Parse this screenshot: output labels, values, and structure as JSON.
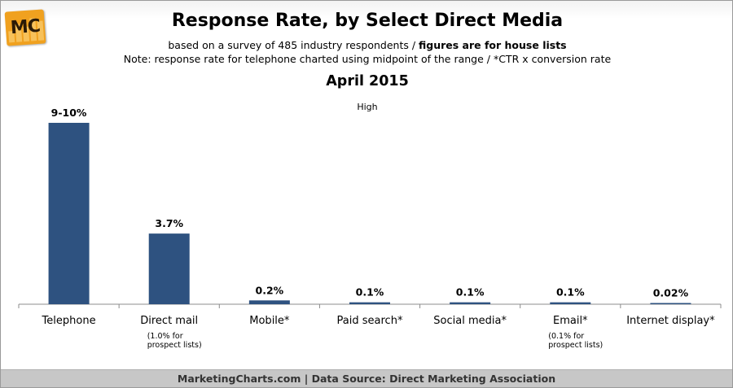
{
  "logo": {
    "text": "MC",
    "color": "#f0a11f"
  },
  "header": {
    "title": "Response Rate, by Select Direct Media",
    "subtitle_plain": "based on a survey of 485 industry respondents / ",
    "subtitle_bold": "figures are for house lists",
    "note": "Note: response rate for telephone charted using midpoint of the range / *CTR x conversion rate",
    "date": "April 2015"
  },
  "legend": {
    "label": "High"
  },
  "footer": {
    "text": "MarketingCharts.com | Data Source: Direct Marketing Association"
  },
  "colors": {
    "bar": "#2e5280",
    "axis": "#8c8c8c"
  },
  "chart_data": {
    "type": "bar",
    "categories": [
      "Telephone",
      "Direct mail",
      "Mobile*",
      "Paid search*",
      "Social media*",
      "Email*",
      "Internet display*"
    ],
    "series": [
      {
        "name": "High",
        "values": [
          9.5,
          3.7,
          0.2,
          0.1,
          0.1,
          0.1,
          0.02
        ]
      }
    ],
    "data_labels": [
      "9-10%",
      "3.7%",
      "0.2%",
      "0.1%",
      "0.1%",
      "0.1%",
      "0.02%"
    ],
    "category_notes": [
      "",
      "(1.0% for\nprospect lists)",
      "",
      "",
      "",
      "(0.1% for\nprospect lists)",
      ""
    ],
    "ylim": [
      0,
      10
    ],
    "grid": false,
    "legend_position": "top-center"
  }
}
